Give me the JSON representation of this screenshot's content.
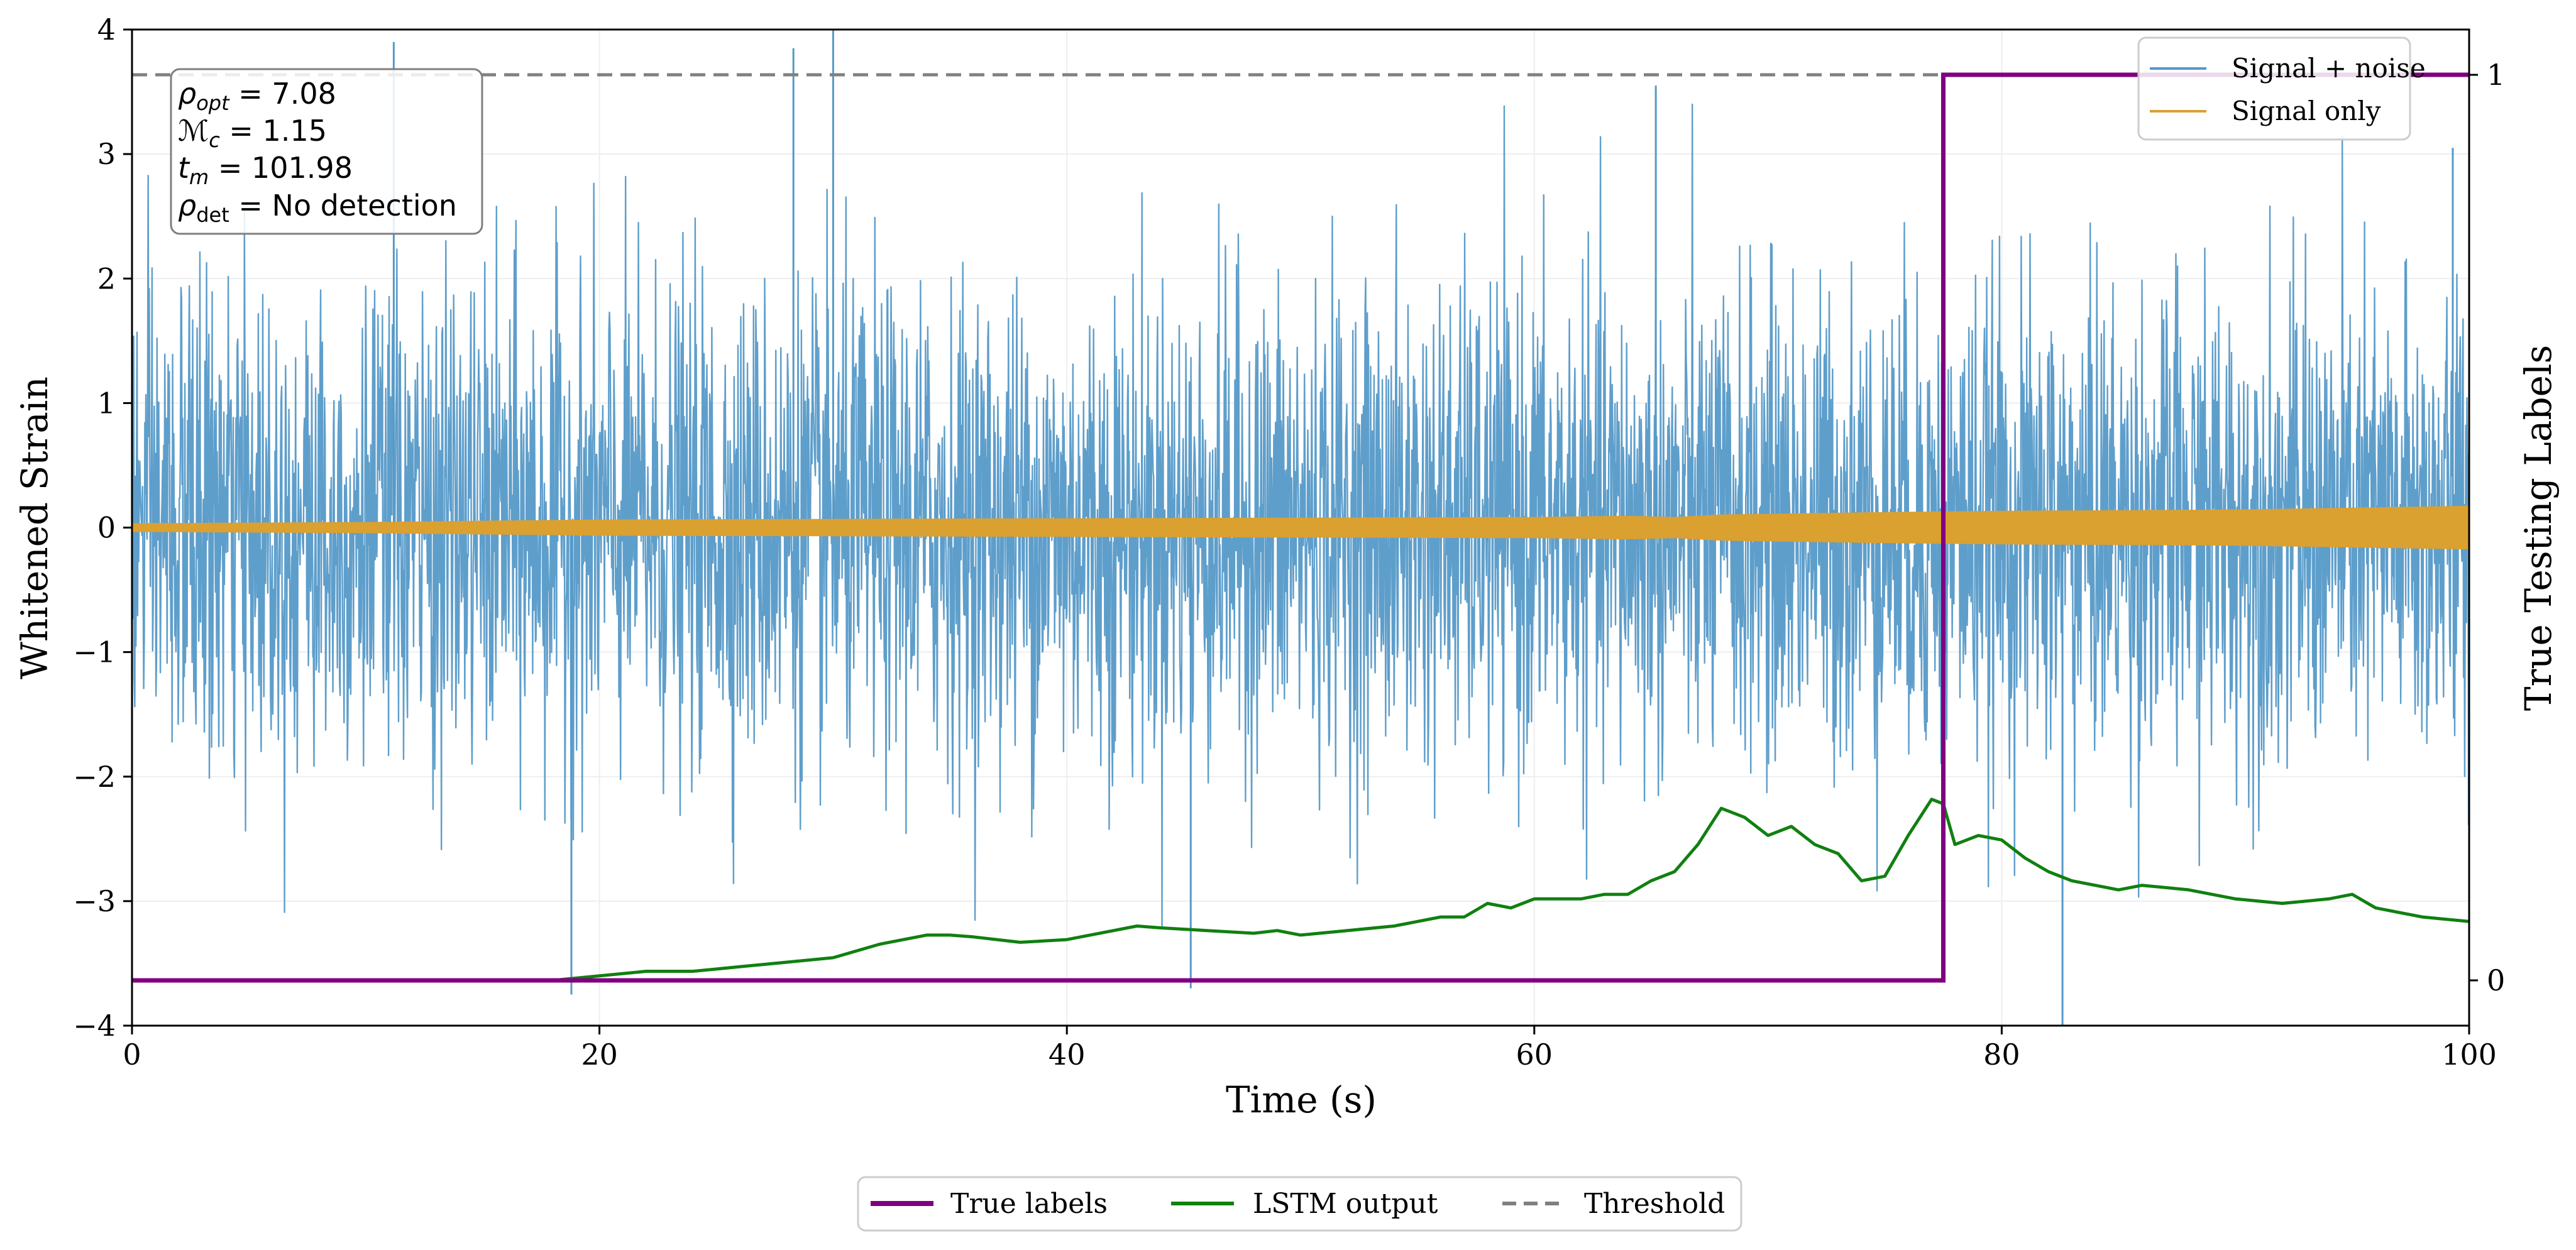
{
  "chart_data": {
    "type": "line",
    "xlabel": "Time (s)",
    "ylabel": "Whitened Strain",
    "y2label": "True Testing Labels",
    "xlim": [
      0,
      100
    ],
    "ylim": [
      -4,
      4
    ],
    "y2lim": [
      -0.05,
      1.05
    ],
    "xticks": [
      0,
      20,
      40,
      60,
      80,
      100
    ],
    "yticks": [
      -4,
      -3,
      -2,
      -1,
      0,
      1,
      2,
      3,
      4
    ],
    "y2ticks": [
      0,
      1
    ],
    "grid": true,
    "annotation": {
      "rho_opt_label": "ρ",
      "rho_opt_sub": "opt",
      "rho_opt_value": " = 7.08",
      "mc_label": "ℳ",
      "mc_sub": "c",
      "mc_value": " = 1.15",
      "tm_label": "t",
      "tm_sub": "m",
      "tm_value": " = 101.98",
      "rho_det_label": "ρ",
      "rho_det_sub": "det",
      "rho_det_value": " = No detection"
    },
    "legend_top": [
      {
        "label": "Signal + noise",
        "color": "#5599c8"
      },
      {
        "label": "Signal only",
        "color": "#daa030"
      }
    ],
    "legend_bottom": [
      {
        "label": "True labels",
        "color": "#800080"
      },
      {
        "label": "LSTM output",
        "color": "#108010"
      },
      {
        "label": "Threshold",
        "color": "#808080"
      }
    ],
    "series": [
      {
        "name": "Signal + noise",
        "axis": "left",
        "color": "#5599c8",
        "noise_sigma": 0.95,
        "notable_spikes": [
          [
            11.2,
            3.9
          ],
          [
            28.3,
            3.85
          ],
          [
            30.0,
            4.0
          ],
          [
            18.8,
            -3.75
          ],
          [
            45.3,
            -3.7
          ],
          [
            82.6,
            -4.0
          ],
          [
            65.2,
            3.55
          ],
          [
            99.3,
            3.05
          ]
        ]
      },
      {
        "name": "Signal only",
        "axis": "left",
        "color": "#daa030",
        "envelope_x": [
          0,
          10,
          20,
          40,
          60,
          64,
          66,
          68,
          75,
          80,
          90,
          100
        ],
        "envelope_amp": [
          0.03,
          0.04,
          0.06,
          0.07,
          0.08,
          0.09,
          0.08,
          0.1,
          0.12,
          0.13,
          0.14,
          0.17
        ]
      },
      {
        "name": "True labels",
        "axis": "right",
        "color": "#800080",
        "x": [
          0,
          77.5,
          77.5,
          100
        ],
        "y": [
          0,
          0,
          1,
          1
        ]
      },
      {
        "name": "LSTM output",
        "axis": "right",
        "color": "#108010",
        "x": [
          0,
          5,
          10,
          15,
          18,
          20,
          22,
          24,
          26,
          28,
          30,
          32,
          34,
          35,
          36,
          38,
          40,
          42,
          43,
          44,
          46,
          48,
          49,
          50,
          52,
          54,
          55,
          56,
          57,
          58,
          59,
          60,
          61,
          62,
          63,
          64,
          65,
          66,
          67,
          68,
          69,
          70,
          71,
          72,
          73,
          74,
          75,
          76,
          77,
          77.5,
          78,
          79,
          80,
          81,
          82,
          83,
          84,
          85,
          86,
          88,
          90,
          92,
          94,
          95,
          96,
          98,
          100
        ],
        "y": [
          0.0,
          0.0,
          0.0,
          0.0,
          0.0,
          0.005,
          0.01,
          0.01,
          0.015,
          0.02,
          0.025,
          0.04,
          0.05,
          0.05,
          0.048,
          0.042,
          0.045,
          0.055,
          0.06,
          0.058,
          0.055,
          0.052,
          0.055,
          0.05,
          0.055,
          0.06,
          0.065,
          0.07,
          0.07,
          0.085,
          0.08,
          0.09,
          0.09,
          0.09,
          0.095,
          0.095,
          0.11,
          0.12,
          0.15,
          0.19,
          0.18,
          0.16,
          0.17,
          0.15,
          0.14,
          0.11,
          0.115,
          0.16,
          0.2,
          0.195,
          0.15,
          0.16,
          0.155,
          0.135,
          0.12,
          0.11,
          0.105,
          0.1,
          0.105,
          0.1,
          0.09,
          0.085,
          0.09,
          0.095,
          0.08,
          0.07,
          0.065
        ]
      },
      {
        "name": "Threshold",
        "axis": "right",
        "color": "#808080",
        "y": 1.0
      }
    ]
  }
}
